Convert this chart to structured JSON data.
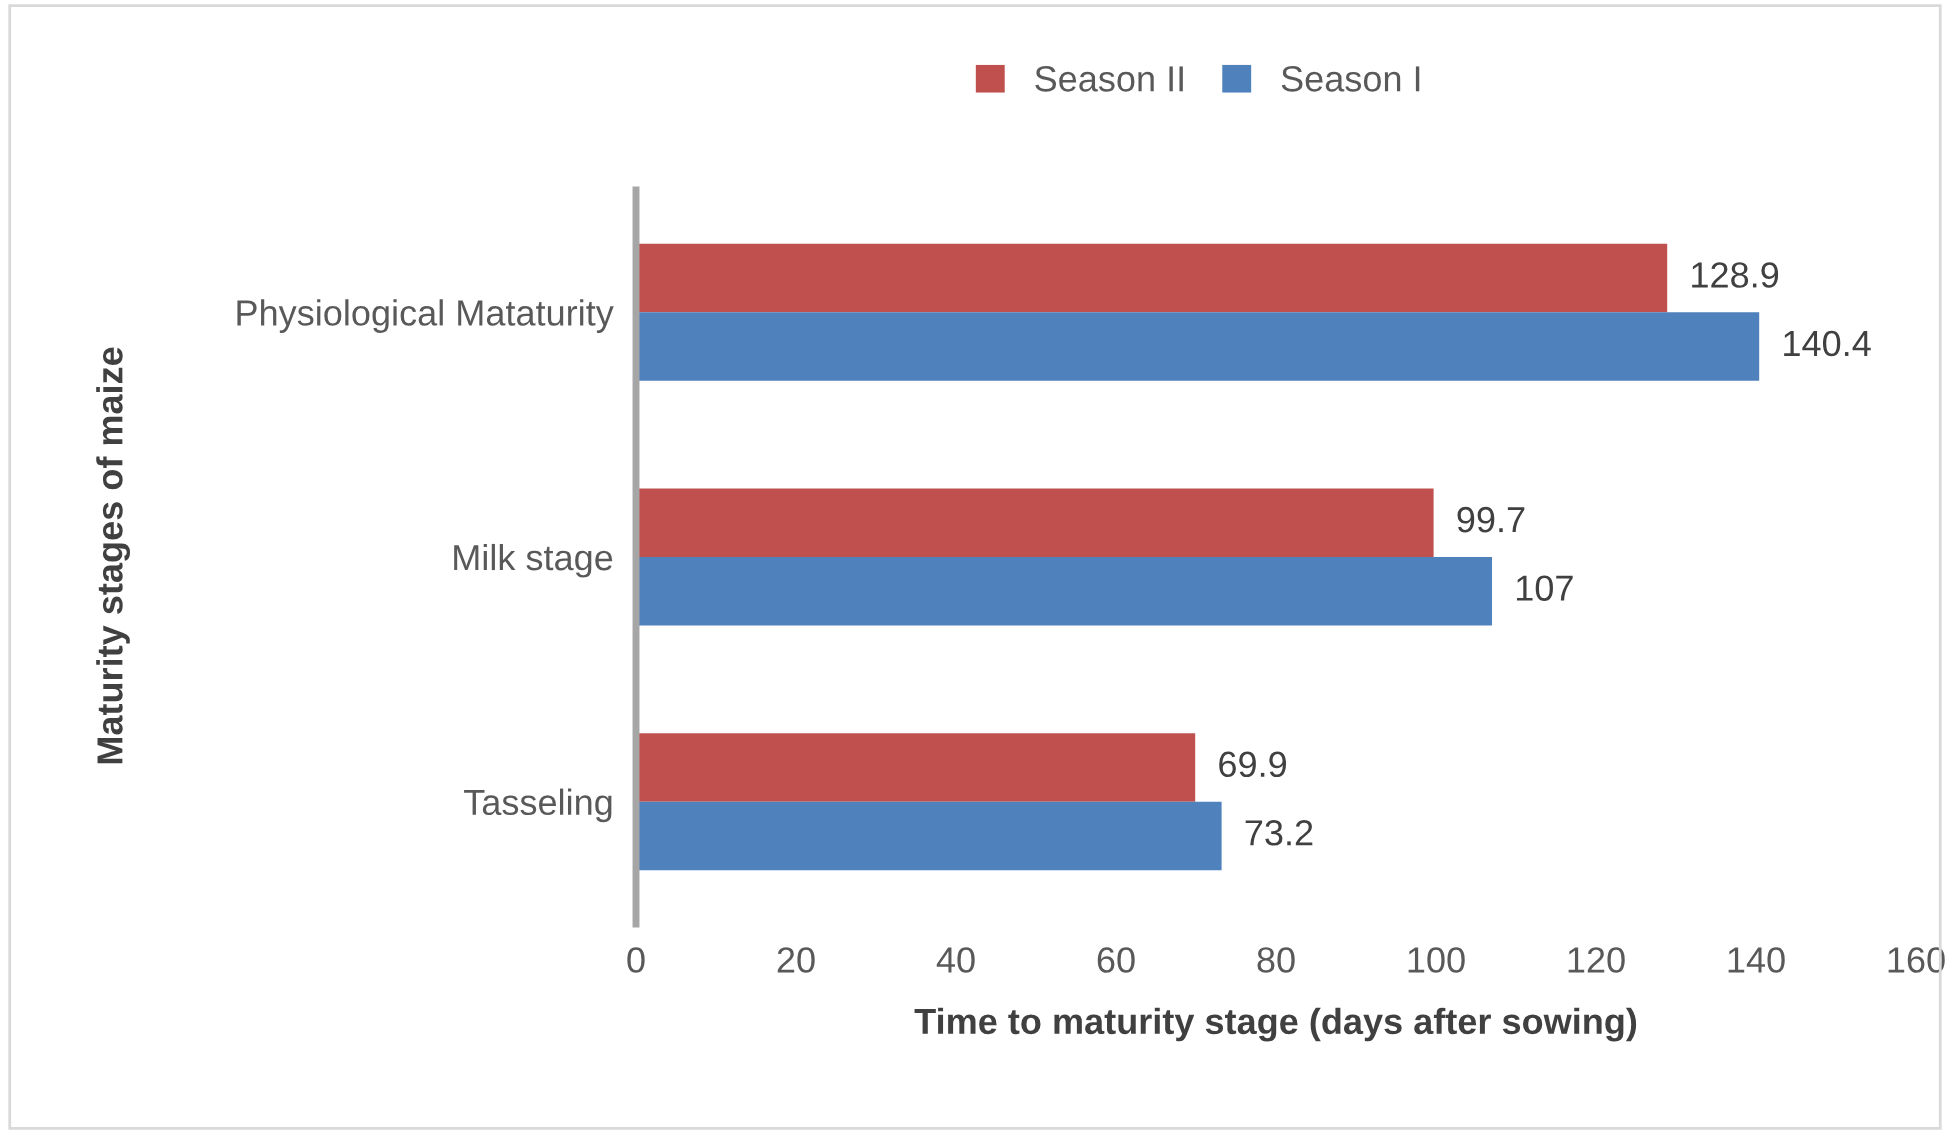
{
  "chart_data": {
    "type": "bar",
    "orientation": "horizontal",
    "categories": [
      "Physiological Mataturity",
      "Milk stage",
      "Tasseling"
    ],
    "series": [
      {
        "name": "Season II",
        "color": "#c0504d",
        "values": [
          128.9,
          99.7,
          69.9
        ]
      },
      {
        "name": "Season I",
        "color": "#4f81bd",
        "values": [
          140.4,
          107,
          73.2
        ]
      }
    ],
    "xlim": [
      0,
      160
    ],
    "xticks": [
      0,
      20,
      40,
      60,
      80,
      100,
      120,
      140,
      160
    ],
    "xlabel": "Time to maturity stage (days after sowing)",
    "ylabel": "Maturity stages of maize",
    "data_labels": true,
    "legend": "top",
    "grid": false
  }
}
